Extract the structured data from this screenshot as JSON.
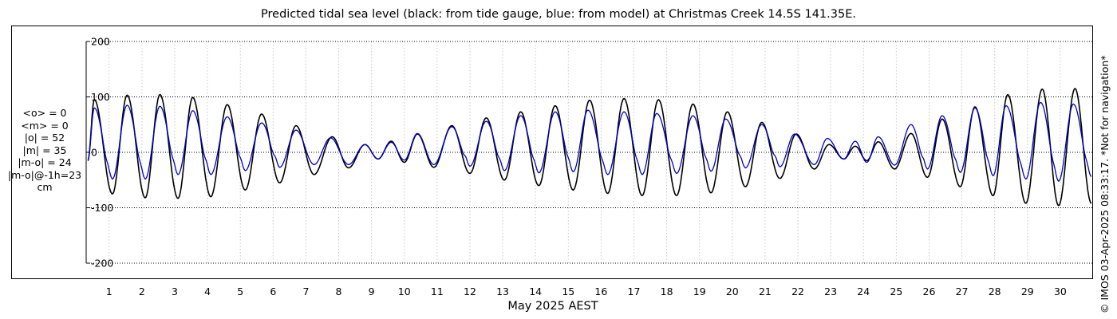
{
  "title": "Predicted tidal sea level (black: from tide gauge, blue: from model) at Christmas Creek 14.5S 141.35E.",
  "stats": [
    "<o> = 0",
    "<m> = 0",
    "|o| = 52",
    "|m| = 35",
    "|m-o| = 24",
    "|m-o|@-1h=23",
    "cm"
  ],
  "xlabel": "May 2025 AEST",
  "credit": "© IMOS 03-Apr-2025 08:33:17.  *Not for navigation*",
  "colors": {
    "gauge": "#000000",
    "model": "#0000cc"
  },
  "chart_data": {
    "type": "line",
    "title": "Predicted tidal sea level (black: from tide gauge, blue: from model) at Christmas Creek 14.5S 141.35E.",
    "xlabel": "May 2025 AEST",
    "ylabel": "",
    "x_unit": "day of May 2025",
    "xlim": [
      0.3,
      31.0
    ],
    "ylim": [
      -200,
      200
    ],
    "yticks": [
      200,
      100,
      0,
      -100,
      -200
    ],
    "xticks": [
      1,
      2,
      3,
      4,
      5,
      6,
      7,
      8,
      9,
      10,
      11,
      12,
      13,
      14,
      15,
      16,
      17,
      18,
      19,
      20,
      21,
      22,
      23,
      24,
      25,
      26,
      27,
      28,
      29,
      30
    ],
    "grid": true,
    "legend": "none",
    "series": [
      {
        "name": "tide gauge",
        "color": "black",
        "peaks": [
          [
            0.55,
            95
          ],
          [
            1.1,
            -75
          ],
          [
            1.55,
            103
          ],
          [
            2.1,
            -82
          ],
          [
            2.55,
            104
          ],
          [
            3.1,
            -83
          ],
          [
            3.55,
            99
          ],
          [
            4.1,
            -80
          ],
          [
            4.6,
            86
          ],
          [
            5.15,
            -68
          ],
          [
            5.65,
            69
          ],
          [
            6.2,
            -55
          ],
          [
            6.7,
            48
          ],
          [
            7.25,
            -40
          ],
          [
            7.8,
            28
          ],
          [
            8.3,
            -28
          ],
          [
            8.8,
            14
          ],
          [
            9.2,
            -12
          ],
          [
            9.6,
            20
          ],
          [
            10.0,
            -18
          ],
          [
            10.4,
            33
          ],
          [
            10.9,
            -27
          ],
          [
            11.45,
            48
          ],
          [
            12.0,
            -38
          ],
          [
            12.5,
            62
          ],
          [
            13.05,
            -50
          ],
          [
            13.55,
            73
          ],
          [
            14.1,
            -60
          ],
          [
            14.6,
            84
          ],
          [
            15.15,
            -68
          ],
          [
            15.65,
            94
          ],
          [
            16.2,
            -74
          ],
          [
            16.7,
            97
          ],
          [
            17.25,
            -78
          ],
          [
            17.75,
            95
          ],
          [
            18.3,
            -78
          ],
          [
            18.8,
            87
          ],
          [
            19.35,
            -73
          ],
          [
            19.85,
            73
          ],
          [
            20.4,
            -62
          ],
          [
            20.9,
            54
          ],
          [
            21.45,
            -47
          ],
          [
            21.95,
            33
          ],
          [
            22.5,
            -30
          ],
          [
            22.95,
            14
          ],
          [
            23.4,
            -12
          ],
          [
            23.75,
            11
          ],
          [
            24.1,
            -15
          ],
          [
            24.45,
            19
          ],
          [
            24.95,
            -30
          ],
          [
            25.45,
            34
          ],
          [
            25.95,
            -45
          ],
          [
            26.4,
            60
          ],
          [
            26.95,
            -62
          ],
          [
            27.4,
            82
          ],
          [
            27.95,
            -78
          ],
          [
            28.4,
            104
          ],
          [
            28.95,
            -92
          ],
          [
            29.45,
            114
          ],
          [
            29.95,
            -96
          ],
          [
            30.45,
            115
          ],
          [
            30.95,
            -92
          ]
        ]
      },
      {
        "name": "model",
        "color": "blue",
        "peaks": [
          [
            0.55,
            80
          ],
          [
            1.1,
            -48
          ],
          [
            1.55,
            85
          ],
          [
            2.1,
            -48
          ],
          [
            2.55,
            83
          ],
          [
            3.1,
            -40
          ],
          [
            3.55,
            75
          ],
          [
            4.1,
            -40
          ],
          [
            4.6,
            64
          ],
          [
            5.15,
            -33
          ],
          [
            5.65,
            53
          ],
          [
            6.2,
            -27
          ],
          [
            6.7,
            40
          ],
          [
            7.25,
            -22
          ],
          [
            7.75,
            26
          ],
          [
            8.3,
            -22
          ],
          [
            8.8,
            14
          ],
          [
            9.2,
            -12
          ],
          [
            9.6,
            18
          ],
          [
            10.0,
            -14
          ],
          [
            10.4,
            34
          ],
          [
            10.9,
            -22
          ],
          [
            11.45,
            46
          ],
          [
            12.0,
            -25
          ],
          [
            12.5,
            56
          ],
          [
            13.05,
            -33
          ],
          [
            13.55,
            66
          ],
          [
            14.1,
            -37
          ],
          [
            14.6,
            73
          ],
          [
            15.15,
            -35
          ],
          [
            15.6,
            76
          ],
          [
            16.2,
            -40
          ],
          [
            16.7,
            73
          ],
          [
            17.25,
            -40
          ],
          [
            17.7,
            70
          ],
          [
            18.3,
            -38
          ],
          [
            18.8,
            66
          ],
          [
            19.35,
            -34
          ],
          [
            19.8,
            60
          ],
          [
            20.4,
            -28
          ],
          [
            20.9,
            50
          ],
          [
            21.45,
            -26
          ],
          [
            21.9,
            33
          ],
          [
            22.5,
            -22
          ],
          [
            22.9,
            25
          ],
          [
            23.4,
            -12
          ],
          [
            23.75,
            20
          ],
          [
            24.1,
            -18
          ],
          [
            24.45,
            28
          ],
          [
            24.95,
            -23
          ],
          [
            25.45,
            50
          ],
          [
            25.95,
            -30
          ],
          [
            26.4,
            66
          ],
          [
            26.95,
            -36
          ],
          [
            27.4,
            80
          ],
          [
            27.95,
            -42
          ],
          [
            28.35,
            84
          ],
          [
            28.95,
            -48
          ],
          [
            29.4,
            90
          ],
          [
            29.95,
            -52
          ],
          [
            30.4,
            87
          ],
          [
            30.95,
            -44
          ]
        ],
        "secondary_trough_level": -33
      }
    ]
  }
}
